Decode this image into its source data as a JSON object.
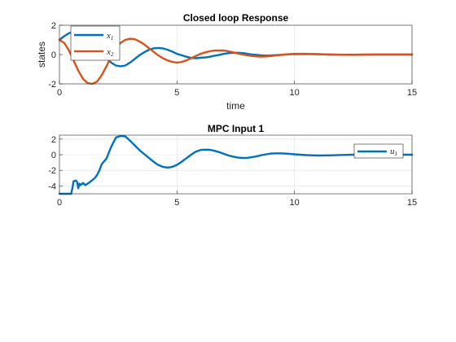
{
  "colors": {
    "series1": "#0072BD",
    "series2": "#D95319",
    "grid": "#dfdfdf",
    "axis": "#262626"
  },
  "chart_data": [
    {
      "type": "line",
      "title": "Closed loop Response",
      "xlabel": "time",
      "ylabel": "states",
      "xlim": [
        0,
        15
      ],
      "ylim": [
        -2,
        2
      ],
      "xticks": [
        "0",
        "5",
        "10",
        "15"
      ],
      "yticks": [
        "-2",
        "0",
        "2"
      ],
      "grid": true,
      "legend_position": "top-left",
      "series": [
        {
          "name": "x1",
          "legend_main": "x",
          "legend_sub": "1",
          "color": "#0072BD",
          "x": [
            0,
            0.2,
            0.4,
            0.6,
            0.8,
            1.0,
            1.2,
            1.4,
            1.6,
            1.8,
            2.0,
            2.2,
            2.4,
            2.6,
            2.8,
            3.0,
            3.2,
            3.4,
            3.6,
            3.8,
            4.0,
            4.2,
            4.4,
            4.6,
            4.8,
            5.0,
            5.2,
            5.4,
            5.6,
            5.8,
            6.0,
            6.2,
            6.4,
            6.6,
            6.8,
            7.0,
            7.2,
            7.4,
            7.6,
            7.8,
            8.0,
            8.2,
            8.4,
            8.6,
            8.8,
            9.0,
            9.2,
            9.4,
            9.6,
            9.8,
            10.0,
            10.5,
            11.0,
            11.5,
            12.0,
            12.5,
            13.0,
            13.5,
            14.0,
            14.5,
            15.0
          ],
          "y": [
            1.0,
            1.25,
            1.45,
            1.55,
            1.55,
            1.45,
            1.25,
            0.95,
            0.55,
            0.15,
            -0.25,
            -0.55,
            -0.75,
            -0.8,
            -0.75,
            -0.55,
            -0.3,
            -0.05,
            0.15,
            0.32,
            0.42,
            0.45,
            0.42,
            0.33,
            0.2,
            0.05,
            -0.05,
            -0.15,
            -0.22,
            -0.25,
            -0.22,
            -0.2,
            -0.15,
            -0.08,
            -0.02,
            0.05,
            0.1,
            0.12,
            0.12,
            0.1,
            0.05,
            0.0,
            -0.03,
            -0.06,
            -0.07,
            -0.06,
            -0.04,
            -0.02,
            0.0,
            0.02,
            0.03,
            0.04,
            0.02,
            0.0,
            -0.01,
            -0.01,
            0.0,
            0.0,
            0.0,
            0.0,
            0.0
          ]
        },
        {
          "name": "x2",
          "legend_main": "x",
          "legend_sub": "2",
          "color": "#D95319",
          "x": [
            0,
            0.2,
            0.4,
            0.6,
            0.8,
            1.0,
            1.2,
            1.4,
            1.6,
            1.8,
            2.0,
            2.2,
            2.4,
            2.6,
            2.8,
            3.0,
            3.2,
            3.4,
            3.6,
            3.8,
            4.0,
            4.2,
            4.4,
            4.6,
            4.8,
            5.0,
            5.2,
            5.4,
            5.6,
            5.8,
            6.0,
            6.2,
            6.4,
            6.6,
            6.8,
            7.0,
            7.2,
            7.4,
            7.6,
            7.8,
            8.0,
            8.2,
            8.4,
            8.6,
            8.8,
            9.0,
            9.2,
            9.4,
            9.6,
            9.8,
            10.0,
            10.5,
            11.0,
            11.5,
            12.0,
            12.5,
            13.0,
            13.5,
            14.0,
            14.5,
            15.0
          ],
          "y": [
            1.0,
            0.8,
            0.3,
            -0.4,
            -1.1,
            -1.65,
            -1.95,
            -2.0,
            -1.85,
            -1.4,
            -0.8,
            -0.15,
            0.4,
            0.8,
            1.0,
            1.08,
            1.05,
            0.9,
            0.7,
            0.45,
            0.2,
            -0.05,
            -0.25,
            -0.4,
            -0.5,
            -0.55,
            -0.5,
            -0.4,
            -0.25,
            -0.1,
            0.05,
            0.15,
            0.23,
            0.27,
            0.28,
            0.27,
            0.22,
            0.15,
            0.07,
            0.0,
            -0.05,
            -0.1,
            -0.13,
            -0.14,
            -0.13,
            -0.1,
            -0.06,
            -0.03,
            0.0,
            0.03,
            0.05,
            0.05,
            0.03,
            0.0,
            -0.01,
            -0.02,
            -0.01,
            0.0,
            0.0,
            0.0,
            0.0
          ]
        }
      ]
    },
    {
      "type": "line",
      "title": "MPC Input 1",
      "xlabel": "",
      "ylabel": "",
      "xlim": [
        0,
        15
      ],
      "ylim": [
        -5,
        2.5
      ],
      "xticks": [
        "0",
        "5",
        "10",
        "15"
      ],
      "yticks": [
        "-4",
        "-2",
        "0",
        "2"
      ],
      "grid": true,
      "legend_position": "top-right",
      "series": [
        {
          "name": "u1",
          "legend_main": "u",
          "legend_sub": "1",
          "color": "#0072BD",
          "x": [
            0,
            0.5,
            0.55,
            0.6,
            0.7,
            0.75,
            0.8,
            0.85,
            0.9,
            1.0,
            1.1,
            1.2,
            1.3,
            1.5,
            1.6,
            1.7,
            1.8,
            2.0,
            2.2,
            2.4,
            2.6,
            2.8,
            3.0,
            3.2,
            3.4,
            3.6,
            3.8,
            4.0,
            4.2,
            4.4,
            4.6,
            4.8,
            5.0,
            5.2,
            5.4,
            5.6,
            5.8,
            6.0,
            6.2,
            6.4,
            6.6,
            6.8,
            7.0,
            7.2,
            7.4,
            7.6,
            7.8,
            8.0,
            8.2,
            8.4,
            8.6,
            8.8,
            9.0,
            9.2,
            9.4,
            9.6,
            9.8,
            10.0,
            10.5,
            11.0,
            11.5,
            12.0,
            12.5,
            13.0,
            13.5,
            14.0,
            14.5,
            15.0
          ],
          "y": [
            -5.0,
            -5.0,
            -4.3,
            -3.4,
            -3.3,
            -3.5,
            -4.3,
            -3.7,
            -3.9,
            -3.6,
            -3.9,
            -3.7,
            -3.5,
            -3.0,
            -2.6,
            -2.0,
            -1.2,
            -0.5,
            1.0,
            2.2,
            2.4,
            2.35,
            1.8,
            1.2,
            0.6,
            0.1,
            -0.4,
            -0.9,
            -1.3,
            -1.55,
            -1.65,
            -1.55,
            -1.3,
            -0.9,
            -0.45,
            0.0,
            0.4,
            0.6,
            0.65,
            0.62,
            0.5,
            0.32,
            0.1,
            -0.1,
            -0.25,
            -0.38,
            -0.42,
            -0.4,
            -0.3,
            -0.2,
            -0.05,
            0.05,
            0.15,
            0.18,
            0.18,
            0.15,
            0.1,
            0.05,
            -0.05,
            -0.1,
            -0.08,
            -0.03,
            0.0,
            0.02,
            0.02,
            0.0,
            0.0,
            0.0
          ]
        }
      ]
    }
  ]
}
